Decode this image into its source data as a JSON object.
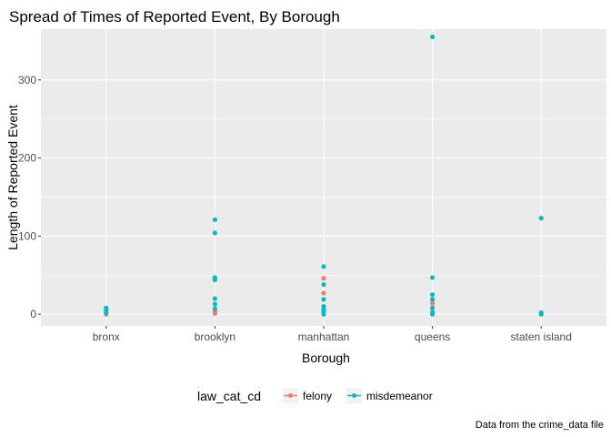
{
  "chart_data": {
    "type": "scatter",
    "title": "Spread of Times of Reported Event, By Borough",
    "xlabel": "Borough",
    "ylabel": "Length of Reported Event",
    "caption": "Data from the crime_data file",
    "categories": [
      "bronx",
      "brooklyn",
      "manhattan",
      "queens",
      "staten island"
    ],
    "ylim": [
      -15,
      365
    ],
    "yticks": [
      0,
      100,
      200,
      300
    ],
    "grid": true,
    "legend": {
      "title": "law_cat_cd",
      "position": "bottom",
      "entries": [
        {
          "name": "felony",
          "color": "#F8766D"
        },
        {
          "name": "misdemeanor",
          "color": "#00BFC4"
        }
      ]
    },
    "series": [
      {
        "name": "felony",
        "color": "#F8766D",
        "points": [
          {
            "x": "bronx",
            "y": 0
          },
          {
            "x": "brooklyn",
            "y": 1
          },
          {
            "x": "brooklyn",
            "y": 4
          },
          {
            "x": "manhattan",
            "y": 27
          },
          {
            "x": "manhattan",
            "y": 46
          },
          {
            "x": "queens",
            "y": 14
          },
          {
            "x": "queens",
            "y": 3
          }
        ]
      },
      {
        "name": "misdemeanor",
        "color": "#00BFC4",
        "points": [
          {
            "x": "bronx",
            "y": 8
          },
          {
            "x": "bronx",
            "y": 5
          },
          {
            "x": "bronx",
            "y": 2
          },
          {
            "x": "brooklyn",
            "y": 121
          },
          {
            "x": "brooklyn",
            "y": 104
          },
          {
            "x": "brooklyn",
            "y": 47
          },
          {
            "x": "brooklyn",
            "y": 44
          },
          {
            "x": "brooklyn",
            "y": 20
          },
          {
            "x": "brooklyn",
            "y": 13
          },
          {
            "x": "brooklyn",
            "y": 7
          },
          {
            "x": "manhattan",
            "y": 61
          },
          {
            "x": "manhattan",
            "y": 38
          },
          {
            "x": "manhattan",
            "y": 19
          },
          {
            "x": "manhattan",
            "y": 10
          },
          {
            "x": "manhattan",
            "y": 6
          },
          {
            "x": "manhattan",
            "y": 3
          },
          {
            "x": "manhattan",
            "y": 0
          },
          {
            "x": "queens",
            "y": 355
          },
          {
            "x": "queens",
            "y": 47
          },
          {
            "x": "queens",
            "y": 25
          },
          {
            "x": "queens",
            "y": 19
          },
          {
            "x": "queens",
            "y": 8
          },
          {
            "x": "queens",
            "y": 2
          },
          {
            "x": "queens",
            "y": 0
          },
          {
            "x": "staten island",
            "y": 123
          },
          {
            "x": "staten island",
            "y": 2
          },
          {
            "x": "staten island",
            "y": 0
          }
        ]
      }
    ]
  }
}
